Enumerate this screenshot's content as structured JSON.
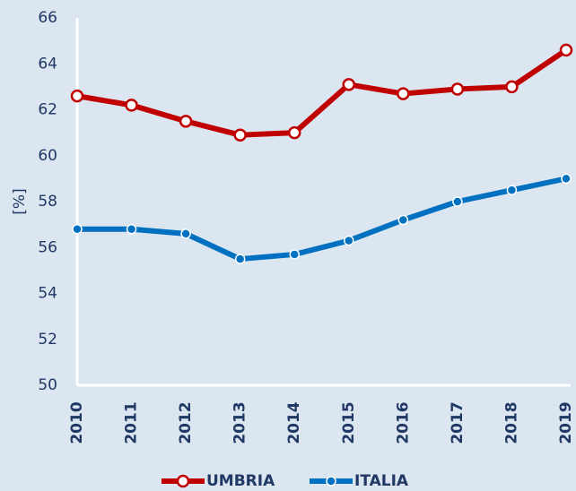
{
  "chart_data": {
    "type": "line",
    "y_label": "[%]",
    "categories": [
      "2010",
      "2011",
      "2012",
      "2013",
      "2014",
      "2015",
      "2016",
      "2017",
      "2018",
      "2019"
    ],
    "series": [
      {
        "name": "UMBRIA",
        "color": "#c00000",
        "values": [
          62.6,
          62.2,
          61.5,
          60.9,
          61.0,
          63.1,
          62.7,
          62.9,
          63.0,
          64.6
        ]
      },
      {
        "name": "ITALIA",
        "color": "#0070c0",
        "values": [
          56.8,
          56.8,
          56.6,
          55.5,
          55.7,
          56.3,
          57.2,
          58.0,
          58.5,
          59.0
        ]
      }
    ],
    "ylim": [
      50,
      66
    ],
    "yticks": [
      50,
      52,
      54,
      56,
      58,
      60,
      62,
      64,
      66
    ],
    "grid": false,
    "legend": "bottom"
  }
}
